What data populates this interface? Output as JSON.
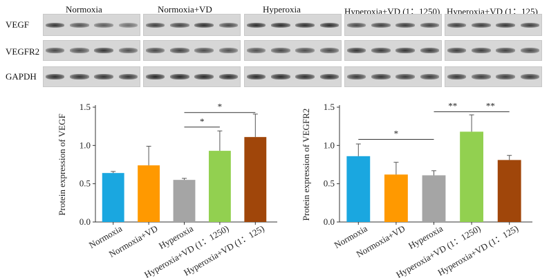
{
  "blot": {
    "groups": [
      "Normoxia",
      "Normoxia+VD",
      "Hyperoxia",
      "Hyperoxia+VD (1：1250)",
      "Hyperoxia+VD (1：125)"
    ],
    "rows": [
      "VEGF",
      "VEGFR2",
      "GAPDH"
    ],
    "band_intensity": {
      "VEGF": [
        [
          0.85,
          0.7,
          0.65,
          0.55
        ],
        [
          0.8,
          0.78,
          0.88,
          0.75
        ],
        [
          0.9,
          0.9,
          0.88,
          0.9
        ],
        [
          0.75,
          0.8,
          0.82,
          0.78
        ],
        [
          0.8,
          0.82,
          0.85,
          0.82
        ]
      ],
      "VEGFR2": [
        [
          0.75,
          0.72,
          0.85,
          0.7
        ],
        [
          0.75,
          0.78,
          0.72,
          0.7
        ],
        [
          0.7,
          0.75,
          0.72,
          0.74
        ],
        [
          0.85,
          0.82,
          0.85,
          0.82
        ],
        [
          0.8,
          0.8,
          0.78,
          0.75
        ]
      ],
      "GAPDH": [
        [
          0.88,
          0.85,
          0.86,
          0.84
        ],
        [
          0.92,
          0.92,
          0.9,
          0.9
        ],
        [
          0.9,
          0.9,
          0.88,
          0.88
        ],
        [
          0.82,
          0.85,
          0.82,
          0.82
        ],
        [
          0.84,
          0.8,
          0.8,
          0.82
        ]
      ]
    }
  },
  "chart_data": [
    {
      "type": "bar",
      "categories": [
        "Normoxia",
        "Normoxia+VD",
        "Hyperoxia",
        "Hyperoxia+VD (1：1250)",
        "Hyperoxia+VD (1：125)"
      ],
      "values": [
        0.64,
        0.74,
        0.55,
        0.93,
        1.11
      ],
      "errors": [
        0.02,
        0.25,
        0.02,
        0.26,
        0.3
      ],
      "colors": [
        "#1aa7e0",
        "#ff9900",
        "#a5a5a5",
        "#92d050",
        "#a0460a"
      ],
      "ylabel": "Protein expression of VEGF",
      "ylim": [
        0.0,
        1.5
      ],
      "yticks": [
        "0.0",
        "0.5",
        "1.0",
        "1.5"
      ],
      "significance": [
        {
          "from": 2,
          "to": 3,
          "label": "*"
        },
        {
          "from": 2,
          "to": 4,
          "label": "*"
        }
      ]
    },
    {
      "type": "bar",
      "categories": [
        "Normoxia",
        "Normoxia+VD",
        "Hyperoxia",
        "Hyperoxia+VD (1：1250)",
        "Hyperoxia+VD (1：125)"
      ],
      "values": [
        0.86,
        0.62,
        0.61,
        1.18,
        0.81
      ],
      "errors": [
        0.16,
        0.16,
        0.06,
        0.22,
        0.06
      ],
      "colors": [
        "#1aa7e0",
        "#ff9900",
        "#a5a5a5",
        "#92d050",
        "#a0460a"
      ],
      "ylabel": "Protein expression of VEGFR2",
      "ylim": [
        0.0,
        1.5
      ],
      "yticks": [
        "0.0",
        "0.5",
        "1.0",
        "1.5"
      ],
      "significance": [
        {
          "from": 0,
          "to": 2,
          "label": "*"
        },
        {
          "from": 2,
          "to": 3,
          "label": "**"
        },
        {
          "from": 3,
          "to": 4,
          "label": "**"
        }
      ]
    }
  ]
}
